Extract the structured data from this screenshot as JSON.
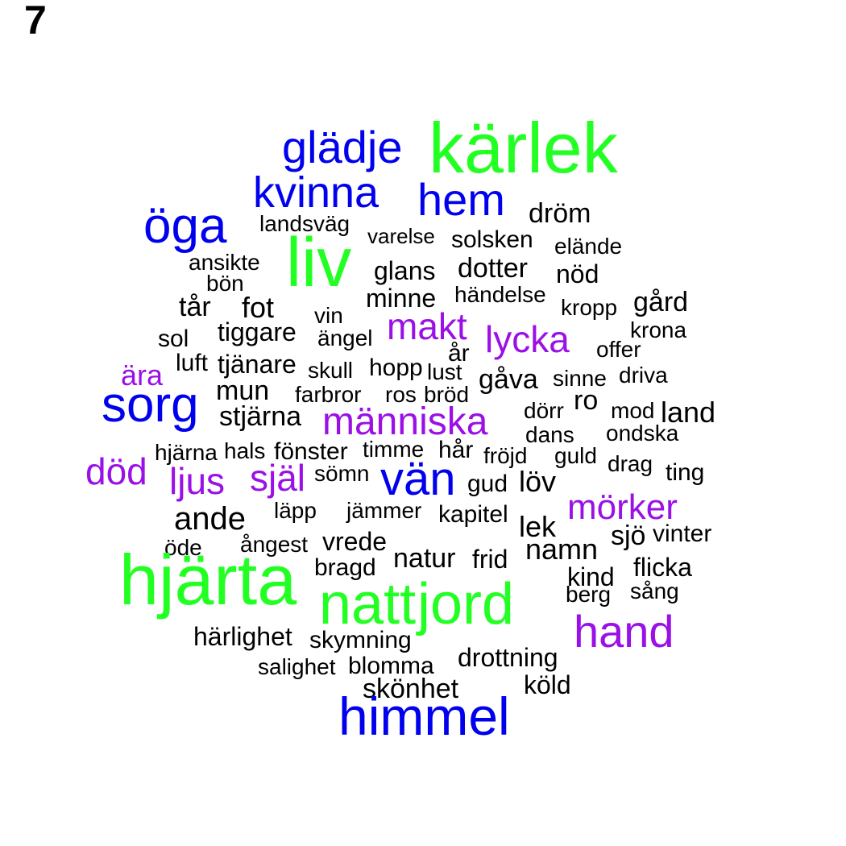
{
  "panel_label": "7",
  "colors": {
    "green": "#22ff22",
    "blue": "#0000ee",
    "purple": "#9a10e6",
    "black": "#000000"
  },
  "words": [
    {
      "text": "kärlek",
      "color": "green"
    },
    {
      "text": "glädje",
      "color": "blue"
    },
    {
      "text": "kvinna",
      "color": "blue"
    },
    {
      "text": "hem",
      "color": "blue"
    },
    {
      "text": "dröm",
      "color": "black"
    },
    {
      "text": "öga",
      "color": "blue"
    },
    {
      "text": "landsväg",
      "color": "black"
    },
    {
      "text": "varelse",
      "color": "black"
    },
    {
      "text": "solsken",
      "color": "black"
    },
    {
      "text": "elände",
      "color": "black"
    },
    {
      "text": "liv",
      "color": "green"
    },
    {
      "text": "ansikte",
      "color": "black"
    },
    {
      "text": "bön",
      "color": "black"
    },
    {
      "text": "glans",
      "color": "black"
    },
    {
      "text": "dotter",
      "color": "black"
    },
    {
      "text": "nöd",
      "color": "black"
    },
    {
      "text": "minne",
      "color": "black"
    },
    {
      "text": "händelse",
      "color": "black"
    },
    {
      "text": "tår",
      "color": "black"
    },
    {
      "text": "fot",
      "color": "black"
    },
    {
      "text": "vin",
      "color": "black"
    },
    {
      "text": "kropp",
      "color": "black"
    },
    {
      "text": "gård",
      "color": "black"
    },
    {
      "text": "makt",
      "color": "purple"
    },
    {
      "text": "tiggare",
      "color": "black"
    },
    {
      "text": "ängel",
      "color": "black"
    },
    {
      "text": "lycka",
      "color": "purple"
    },
    {
      "text": "krona",
      "color": "black"
    },
    {
      "text": "sol",
      "color": "black"
    },
    {
      "text": "offer",
      "color": "black"
    },
    {
      "text": "år",
      "color": "black"
    },
    {
      "text": "ära",
      "color": "purple"
    },
    {
      "text": "luft",
      "color": "black"
    },
    {
      "text": "tjänare",
      "color": "black"
    },
    {
      "text": "skull",
      "color": "black"
    },
    {
      "text": "hopp",
      "color": "black"
    },
    {
      "text": "lust",
      "color": "black"
    },
    {
      "text": "gåva",
      "color": "black"
    },
    {
      "text": "sinne",
      "color": "black"
    },
    {
      "text": "driva",
      "color": "black"
    },
    {
      "text": "mun",
      "color": "black"
    },
    {
      "text": "farbror",
      "color": "black"
    },
    {
      "text": "ros",
      "color": "black"
    },
    {
      "text": "bröd",
      "color": "black"
    },
    {
      "text": "sorg",
      "color": "blue"
    },
    {
      "text": "ro",
      "color": "black"
    },
    {
      "text": "mod",
      "color": "black"
    },
    {
      "text": "land",
      "color": "black"
    },
    {
      "text": "stjärna",
      "color": "black"
    },
    {
      "text": "människa",
      "color": "purple"
    },
    {
      "text": "dörr",
      "color": "black"
    },
    {
      "text": "dans",
      "color": "black"
    },
    {
      "text": "ondska",
      "color": "black"
    },
    {
      "text": "hjärna",
      "color": "black"
    },
    {
      "text": "hals",
      "color": "black"
    },
    {
      "text": "fönster",
      "color": "black"
    },
    {
      "text": "timme",
      "color": "black"
    },
    {
      "text": "hår",
      "color": "black"
    },
    {
      "text": "fröjd",
      "color": "black"
    },
    {
      "text": "guld",
      "color": "black"
    },
    {
      "text": "drag",
      "color": "black"
    },
    {
      "text": "död",
      "color": "purple"
    },
    {
      "text": "ljus",
      "color": "purple"
    },
    {
      "text": "själ",
      "color": "purple"
    },
    {
      "text": "sömn",
      "color": "black"
    },
    {
      "text": "vän",
      "color": "blue"
    },
    {
      "text": "gud",
      "color": "black"
    },
    {
      "text": "löv",
      "color": "black"
    },
    {
      "text": "ting",
      "color": "black"
    },
    {
      "text": "ande",
      "color": "black"
    },
    {
      "text": "läpp",
      "color": "black"
    },
    {
      "text": "jämmer",
      "color": "black"
    },
    {
      "text": "kapitel",
      "color": "black"
    },
    {
      "text": "mörker",
      "color": "purple"
    },
    {
      "text": "lek",
      "color": "black"
    },
    {
      "text": "sjö",
      "color": "black"
    },
    {
      "text": "vinter",
      "color": "black"
    },
    {
      "text": "öde",
      "color": "black"
    },
    {
      "text": "ångest",
      "color": "black"
    },
    {
      "text": "vrede",
      "color": "black"
    },
    {
      "text": "namn",
      "color": "black"
    },
    {
      "text": "natur",
      "color": "black"
    },
    {
      "text": "frid",
      "color": "black"
    },
    {
      "text": "bragd",
      "color": "black"
    },
    {
      "text": "flicka",
      "color": "black"
    },
    {
      "text": "hjärta",
      "color": "green"
    },
    {
      "text": "kind",
      "color": "black"
    },
    {
      "text": "sång",
      "color": "black"
    },
    {
      "text": "berg",
      "color": "black"
    },
    {
      "text": "natt",
      "color": "green"
    },
    {
      "text": "jord",
      "color": "green"
    },
    {
      "text": "hand",
      "color": "purple"
    },
    {
      "text": "härlighet",
      "color": "black"
    },
    {
      "text": "skymning",
      "color": "black"
    },
    {
      "text": "drottning",
      "color": "black"
    },
    {
      "text": "salighet",
      "color": "black"
    },
    {
      "text": "blomma",
      "color": "black"
    },
    {
      "text": "köld",
      "color": "black"
    },
    {
      "text": "skönhet",
      "color": "black"
    },
    {
      "text": "himmel",
      "color": "blue"
    }
  ]
}
